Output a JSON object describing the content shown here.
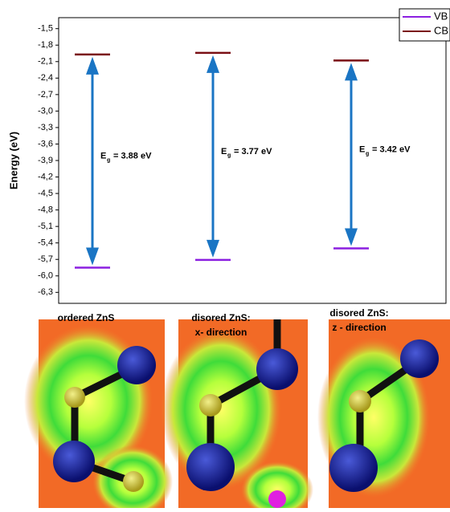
{
  "chart_data": {
    "type": "energy-levels",
    "ylabel": "Energy (eV)",
    "ylim": [
      -6.5,
      -1.3
    ],
    "yticks": [
      {
        "value": -1.5,
        "label": "-1,5"
      },
      {
        "value": -1.8,
        "label": "-1,8"
      },
      {
        "value": -2.1,
        "label": "-2,1"
      },
      {
        "value": -2.4,
        "label": "-2,4"
      },
      {
        "value": -2.7,
        "label": "-2,7"
      },
      {
        "value": -3.0,
        "label": "-3,0"
      },
      {
        "value": -3.3,
        "label": "-3,3"
      },
      {
        "value": -3.6,
        "label": "-3,6"
      },
      {
        "value": -3.9,
        "label": "-3,9"
      },
      {
        "value": -4.2,
        "label": "-4,2"
      },
      {
        "value": -4.5,
        "label": "-4,5"
      },
      {
        "value": -4.8,
        "label": "-4,8"
      },
      {
        "value": -5.1,
        "label": "-5,1"
      },
      {
        "value": -5.4,
        "label": "-5,4"
      },
      {
        "value": -5.7,
        "label": "-5,7"
      },
      {
        "value": -6.0,
        "label": "-6,0"
      },
      {
        "value": -6.3,
        "label": "-6,3"
      }
    ],
    "categories": [
      [
        "ordered ZnS"
      ],
      [
        "disored ZnS:",
        "x- direction"
      ],
      [
        "disored ZnS:",
        "z - direction"
      ]
    ],
    "series": [
      {
        "name": "VB",
        "color": "#8b1fe0",
        "values": [
          -5.85,
          -5.71,
          -5.5
        ]
      },
      {
        "name": "CB",
        "color": "#7a0f14",
        "values": [
          -1.97,
          -1.94,
          -2.08
        ]
      }
    ],
    "arrow_color": "#1a75c4",
    "annotations": [
      {
        "symbol": "E",
        "sub": "g",
        "text": "= 3.88 eV"
      },
      {
        "symbol": "E",
        "sub": "g",
        "text": "= 3.77 eV"
      },
      {
        "symbol": "E",
        "sub": "g",
        "text": "= 3.42 eV"
      }
    ],
    "legend": "top-right"
  }
}
